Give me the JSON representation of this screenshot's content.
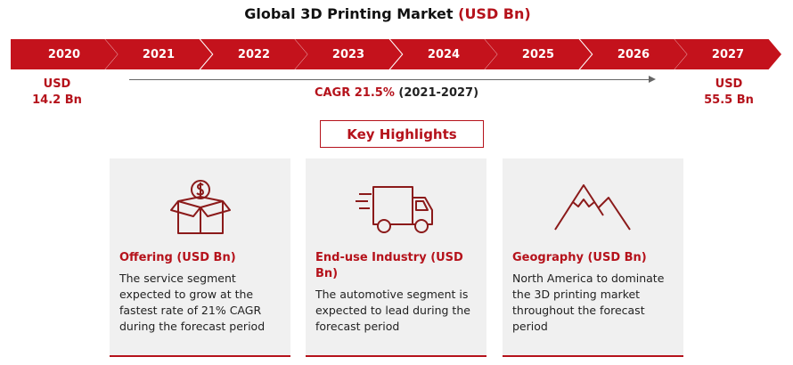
{
  "title": {
    "main": "Global 3D Printing Market",
    "accent": "(USD Bn)"
  },
  "timeline": {
    "years": [
      "2020",
      "2021",
      "2022",
      "2023",
      "2024",
      "2025",
      "2026",
      "2027"
    ]
  },
  "start_value": {
    "unit": "USD",
    "amount": "14.2 Bn"
  },
  "end_value": {
    "unit": "USD",
    "amount": "55.5 Bn"
  },
  "cagr": {
    "label": "CAGR 21.5%",
    "period": "(2021-2027)"
  },
  "key_highlights": {
    "label": "Key Highlights"
  },
  "cards": [
    {
      "title": "Offering (USD Bn)",
      "text": "The service segment expected to grow at the fastest rate of 21% CAGR during the forecast period",
      "icon": "money-box-icon"
    },
    {
      "title": "End-use Industry (USD Bn)",
      "text": "The automotive segment is expected to lead during the forecast period",
      "icon": "delivery-truck-icon"
    },
    {
      "title": "Geography (USD Bn)",
      "text": "North America to dominate the 3D printing market throughout the forecast period",
      "icon": "mountain-icon"
    }
  ],
  "colors": {
    "accent": "#b5121b",
    "chevron": "#c4121c",
    "card_bg": "#f0f0f0"
  }
}
